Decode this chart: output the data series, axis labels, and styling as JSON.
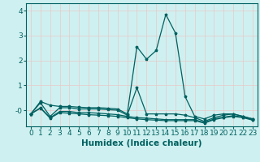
{
  "x": [
    0,
    1,
    2,
    3,
    4,
    5,
    6,
    7,
    8,
    9,
    10,
    11,
    12,
    13,
    14,
    15,
    16,
    17,
    18,
    19,
    20,
    21,
    22,
    23
  ],
  "line1": [
    -0.15,
    0.35,
    0.2,
    0.15,
    0.15,
    0.12,
    0.1,
    0.1,
    0.08,
    0.05,
    -0.15,
    2.55,
    2.05,
    2.4,
    3.85,
    3.1,
    0.55,
    -0.25,
    -0.35,
    -0.2,
    -0.15,
    -0.15,
    -0.25,
    -0.35
  ],
  "line2": [
    -0.15,
    0.3,
    -0.25,
    0.1,
    0.1,
    0.05,
    0.05,
    0.05,
    0.02,
    0.0,
    -0.2,
    0.9,
    -0.15,
    -0.15,
    -0.15,
    -0.15,
    -0.2,
    -0.3,
    -0.45,
    -0.3,
    -0.2,
    -0.15,
    -0.25,
    -0.35
  ],
  "line3": [
    -0.15,
    0.1,
    -0.3,
    -0.05,
    -0.05,
    -0.1,
    -0.1,
    -0.12,
    -0.15,
    -0.18,
    -0.25,
    -0.3,
    -0.32,
    -0.35,
    -0.38,
    -0.38,
    -0.38,
    -0.38,
    -0.5,
    -0.35,
    -0.28,
    -0.22,
    -0.28,
    -0.38
  ],
  "line4": [
    -0.15,
    0.08,
    -0.32,
    -0.1,
    -0.12,
    -0.15,
    -0.18,
    -0.2,
    -0.22,
    -0.25,
    -0.3,
    -0.35,
    -0.38,
    -0.4,
    -0.42,
    -0.42,
    -0.42,
    -0.42,
    -0.52,
    -0.38,
    -0.3,
    -0.25,
    -0.3,
    -0.4
  ],
  "bg_color": "#cff0f0",
  "grid_color": "#e8c8c8",
  "line_color": "#006060",
  "xlabel": "Humidex (Indice chaleur)",
  "ylim": [
    -0.65,
    4.3
  ],
  "xlim": [
    -0.5,
    23.5
  ],
  "yticks": [
    0,
    1,
    2,
    3,
    4
  ],
  "ytick_labels": [
    "-0",
    "1",
    "2",
    "3",
    "4"
  ],
  "xticks": [
    0,
    1,
    2,
    3,
    4,
    5,
    6,
    7,
    8,
    9,
    10,
    11,
    12,
    13,
    14,
    15,
    16,
    17,
    18,
    19,
    20,
    21,
    22,
    23
  ],
  "xlabel_fontsize": 7.5,
  "tick_fontsize": 6.5,
  "linewidth": 0.9,
  "markersize": 2.5
}
